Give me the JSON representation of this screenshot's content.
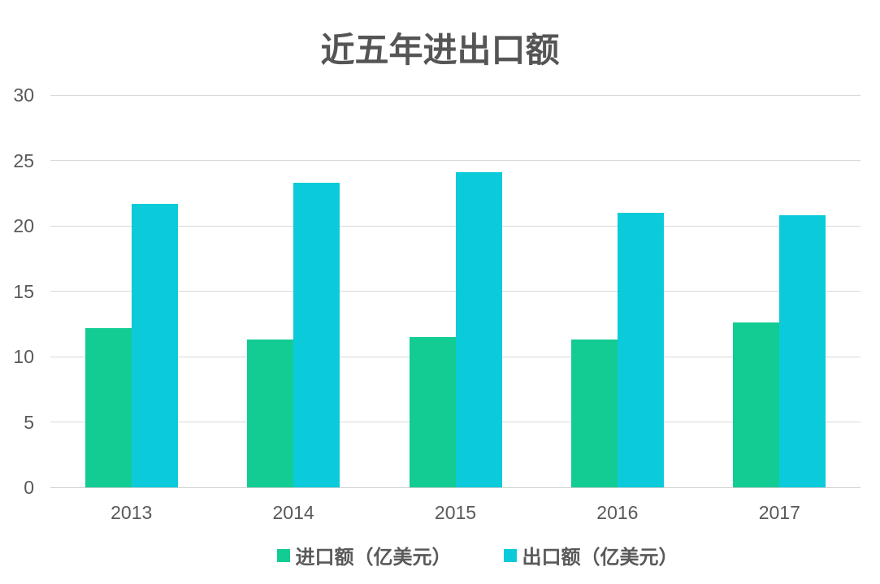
{
  "title": "近五年进出口额",
  "colors": {
    "import_series": "#12cc94",
    "export_series": "#0bcbdb",
    "gridline": "#d9d9d9",
    "axis_line": "#cdcdcd",
    "axis_text": "#595959",
    "title_text": "#555555",
    "background": "#ffffff"
  },
  "chart_data": {
    "type": "bar",
    "title": "近五年进出口额",
    "categories": [
      "2013",
      "2014",
      "2015",
      "2016",
      "2017"
    ],
    "series": [
      {
        "id": "import",
        "name": "进口额（亿美元）",
        "color": "#12cc94",
        "values": [
          12.2,
          11.3,
          11.5,
          11.3,
          12.6
        ]
      },
      {
        "id": "export",
        "name": "出口额（亿美元）",
        "color": "#0bcbdb",
        "values": [
          21.7,
          23.3,
          24.1,
          21.0,
          20.8
        ]
      }
    ],
    "xlabel": "",
    "ylabel": "",
    "ylim": [
      0,
      30
    ],
    "yticks": [
      0,
      5,
      10,
      15,
      20,
      25,
      30
    ],
    "grid": true,
    "legend_position": "bottom"
  }
}
